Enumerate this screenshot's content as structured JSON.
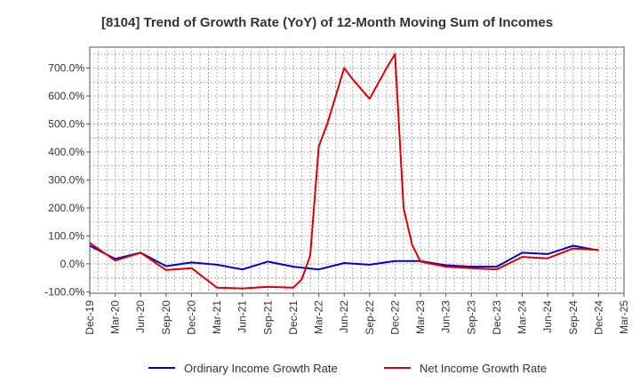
{
  "chart_data": {
    "type": "line",
    "title": "[8104]  Trend of Growth Rate (YoY) of 12-Month Moving Sum of Incomes",
    "xlabel": "",
    "ylabel": "",
    "x_tick_labels": [
      "Dec-19",
      "Mar-20",
      "Jun-20",
      "Sep-20",
      "Dec-20",
      "Mar-21",
      "Jun-21",
      "Sep-21",
      "Dec-21",
      "Mar-22",
      "Jun-22",
      "Sep-22",
      "Dec-22",
      "Mar-23",
      "Jun-23",
      "Sep-23",
      "Dec-23",
      "Mar-24",
      "Jun-24",
      "Sep-24",
      "Dec-24",
      "Mar-25"
    ],
    "y_tick_labels": [
      "-100.0%",
      "0.0%",
      "100.0%",
      "200.0%",
      "300.0%",
      "400.0%",
      "500.0%",
      "600.0%",
      "700.0%"
    ],
    "y_ticks": [
      -100,
      0,
      100,
      200,
      300,
      400,
      500,
      600,
      700
    ],
    "ylim": [
      -105,
      775
    ],
    "xlim_months": [
      0,
      63
    ],
    "grid": true,
    "legend_position": "bottom",
    "series": [
      {
        "name": "Ordinary Income Growth Rate",
        "color": "#0000cc",
        "x_months": [
          0,
          3,
          6,
          9,
          12,
          15,
          18,
          21,
          24,
          27,
          30,
          33,
          36,
          39,
          42,
          45,
          48,
          51,
          54,
          57,
          60
        ],
        "values": [
          65,
          18,
          40,
          -8,
          5,
          -3,
          -20,
          8,
          -10,
          -20,
          3,
          -3,
          10,
          10,
          -5,
          -10,
          -10,
          40,
          35,
          65,
          48
        ]
      },
      {
        "name": "Net Income Growth Rate",
        "color": "#dd0000",
        "x_months": [
          0,
          3,
          6,
          9,
          12,
          15,
          18,
          21,
          24,
          25,
          26,
          27,
          28,
          29,
          30,
          31,
          33,
          35,
          36,
          37,
          38,
          39,
          42,
          45,
          48,
          51,
          54,
          57,
          60
        ],
        "values": [
          75,
          12,
          40,
          -22,
          -15,
          -85,
          -88,
          -82,
          -85,
          -55,
          30,
          420,
          500,
          600,
          700,
          660,
          590,
          700,
          750,
          200,
          70,
          8,
          -10,
          -15,
          -20,
          25,
          20,
          55,
          50
        ]
      }
    ]
  }
}
